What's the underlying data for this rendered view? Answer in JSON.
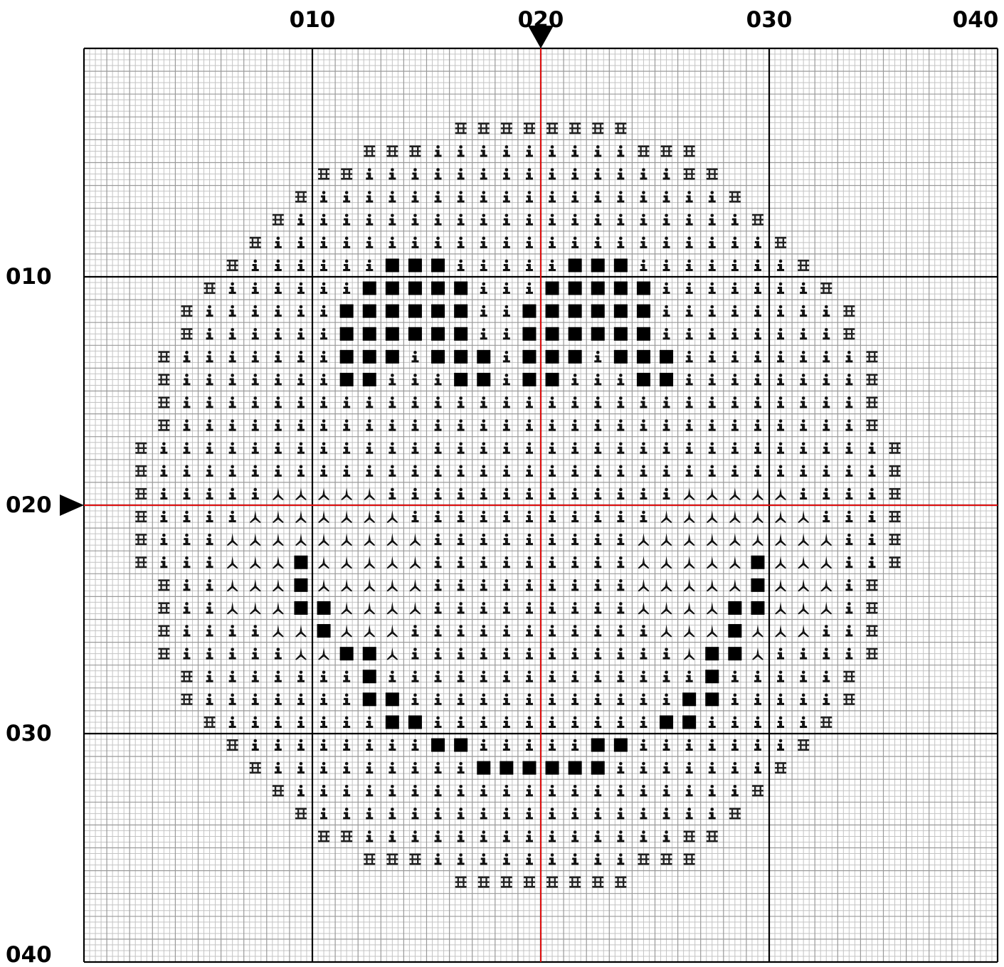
{
  "chart_data": {
    "type": "cross-stitch-pattern",
    "cols": 40,
    "rows": 40,
    "major_every": 10,
    "center": [
      20,
      20
    ],
    "x_ticks": [
      {
        "value": 10,
        "label": "010"
      },
      {
        "value": 20,
        "label": "020"
      },
      {
        "value": 30,
        "label": "030"
      },
      {
        "value": 40,
        "label": "040"
      }
    ],
    "y_ticks": [
      {
        "value": 10,
        "label": "010"
      },
      {
        "value": 20,
        "label": "020"
      },
      {
        "value": 30,
        "label": "030"
      },
      {
        "value": 40,
        "label": "040"
      }
    ],
    "symbols": {
      "H": "outline-symbol",
      "i": "fill-symbol",
      "Y": "cheek-symbol",
      "S": "feature-symbol"
    },
    "pattern_rows": [
      "........................................",
      "........................................",
      "........................................",
      "................HHHHHHHH................",
      "............HHHiiiiiiiiiHHH.............",
      "..........HHiiiiiiiiiiiiiiHH............",
      ".........HiiiiiiiiiiiiiiiiiiH...........",
      "........HiiiiiiiiiiiiiiiiiiiiH..........",
      ".......HiiiiiiiiiiiiiiiiiiiiiiH.........",
      "......HiiiiiiSSSiiiiiSSSiiiiiiiH........",
      ".....HiiiiiiSSSSSiiiSSSSSiiiiiiiH.......",
      "....HiiiiiiSSSSSSiiSSSSSSiiiiiiiiH......",
      "....HiiiiiiSSSSSSiiSSSSSSiiiiiiiiH......",
      "...HiiiiiiiSSSiSSSiSSSiSSSiiiiiiiiH.....",
      "...HiiiiiiiSSiiiSSiSSiiiSSiiiiiiiiH.....",
      "...HiiiiiiiiiiiiiiiiiiiiiiiiiiiiiiH.....",
      "...HiiiiiiiiiiiiiiiiiiiiiiiiiiiiiiH.....",
      "..HiiiiiiiiiiiiiiiiiiiiiiiiiiiiiiiiH....",
      "..HiiiiiiiiiiiiiiiiiiiiiiiiiiiiiiiiH....",
      "..HiiiiiYYYYYiiiiiiiiiiiiiYYYYYiiiiH....",
      "..HiiiiYYYYYYYiiiiiiiiiiiYYYYYYYiiiH....",
      "..HiiiYYYYYYYYYiiiiiiiiiYYYYYYYYYiiH....",
      "..HiiiYYYSYYYYYiiiiiiiiiYYYYYSYYYiiH....",
      "...HiiYYYSYYYYYiiiiiiiiiYYYYYSYYYiH.....",
      "...HiiYYYSSYYYYiiiiiiiiiYYYYSSYYYiH.....",
      "...HiiiiYYSYYYiiiiiiiiiiiYYYSYYYiiH.....",
      "...HiiiiiYYSSYiiiiiiiiiiiiYSSYiiiiH.....",
      "....HiiiiiiiSiiiiiiiiiiiiiiSiiiiiH......",
      "....HiiiiiiiSSiiiiiiiiiiiiSSiiiiiH......",
      ".....HiiiiiiiSSiiiiiiiiiiSSiiiiiH.......",
      "......HiiiiiiiiSSiiiiiSSiiiiiiiH........",
      ".......HiiiiiiiiiSSSSSSiiiiiiiH.........",
      "........HiiiiiiiiiiiiiiiiiiiiH..........",
      ".........HiiiiiiiiiiiiiiiiiiH...........",
      "..........HHiiiiiiiiiiiiiiHH............",
      "............HHHiiiiiiiiiHHH.............",
      "................HHHHHHHH................",
      "........................................",
      "........................................",
      "........................................"
    ]
  }
}
